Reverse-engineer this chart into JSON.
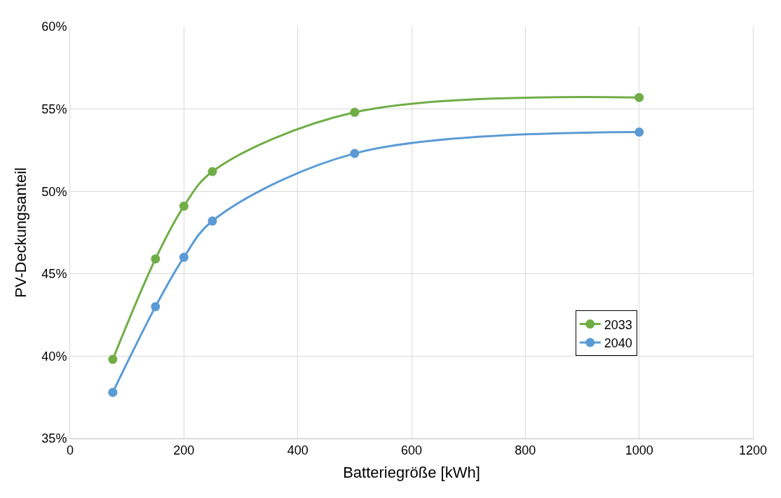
{
  "chart_data": {
    "type": "line",
    "xlabel": "Batteriegröße [kWh]",
    "ylabel": "PV-Deckungsanteil",
    "x": [
      75,
      150,
      200,
      250,
      500,
      1000
    ],
    "series": [
      {
        "name": "2033",
        "color": "#70ad47",
        "values": [
          39.8,
          45.9,
          49.1,
          51.2,
          54.8,
          55.7
        ]
      },
      {
        "name": "2040",
        "color": "#5b9bd5",
        "values": [
          37.8,
          43.0,
          46.0,
          48.2,
          52.3,
          53.6
        ]
      }
    ],
    "xlim": [
      0,
      1200
    ],
    "xticks": [
      0,
      200,
      400,
      600,
      800,
      1000,
      1200
    ],
    "ylim": [
      35,
      60
    ],
    "yticks": [
      {
        "value": 35,
        "label": "35%"
      },
      {
        "value": 40,
        "label": "40%"
      },
      {
        "value": 45,
        "label": "45%"
      },
      {
        "value": 50,
        "label": "50%"
      },
      {
        "value": 55,
        "label": "55%"
      },
      {
        "value": 60,
        "label": "60%"
      }
    ],
    "grid": true,
    "legend": "bottom right",
    "marker": "circle",
    "line_style": "solid"
  }
}
